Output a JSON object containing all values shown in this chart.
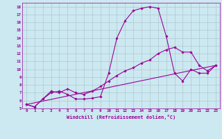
{
  "xlabel": "Windchill (Refroidissement éolien,°C)",
  "background_color": "#cce8f0",
  "line_color": "#990099",
  "xlim": [
    -0.5,
    23.5
  ],
  "ylim": [
    5,
    18.5
  ],
  "xticks": [
    0,
    1,
    2,
    3,
    4,
    5,
    6,
    7,
    8,
    9,
    10,
    11,
    12,
    13,
    14,
    15,
    16,
    17,
    18,
    19,
    20,
    21,
    22,
    23
  ],
  "yticks": [
    5,
    6,
    7,
    8,
    9,
    10,
    11,
    12,
    13,
    14,
    15,
    16,
    17,
    18
  ],
  "grid_color": "#b0c8d0",
  "lines": [
    {
      "x": [
        0,
        1,
        2,
        3,
        4,
        5,
        6,
        7,
        8,
        9,
        10,
        11,
        12,
        13,
        14,
        15,
        16,
        17,
        18,
        19,
        20,
        21,
        22,
        23
      ],
      "y": [
        5.5,
        5.2,
        6.2,
        7.0,
        7.2,
        6.8,
        6.2,
        6.2,
        6.3,
        6.5,
        9.5,
        14.0,
        16.2,
        17.5,
        17.8,
        18.0,
        17.8,
        14.2,
        9.5,
        8.5,
        10.0,
        9.5,
        9.5,
        10.5
      ],
      "marker": true
    },
    {
      "x": [
        0,
        1,
        2,
        3,
        4,
        5,
        6,
        7,
        8,
        9,
        10,
        11,
        12,
        13,
        14,
        15,
        16,
        17,
        18,
        19,
        20,
        21,
        22,
        23
      ],
      "y": [
        5.5,
        5.2,
        6.2,
        7.2,
        7.0,
        7.5,
        7.0,
        6.8,
        7.2,
        7.8,
        8.5,
        9.2,
        9.8,
        10.2,
        10.8,
        11.2,
        12.0,
        12.5,
        12.8,
        12.2,
        12.2,
        10.5,
        9.8,
        10.5
      ],
      "marker": true
    },
    {
      "x": [
        0,
        23
      ],
      "y": [
        5.5,
        10.5
      ],
      "marker": false
    }
  ]
}
